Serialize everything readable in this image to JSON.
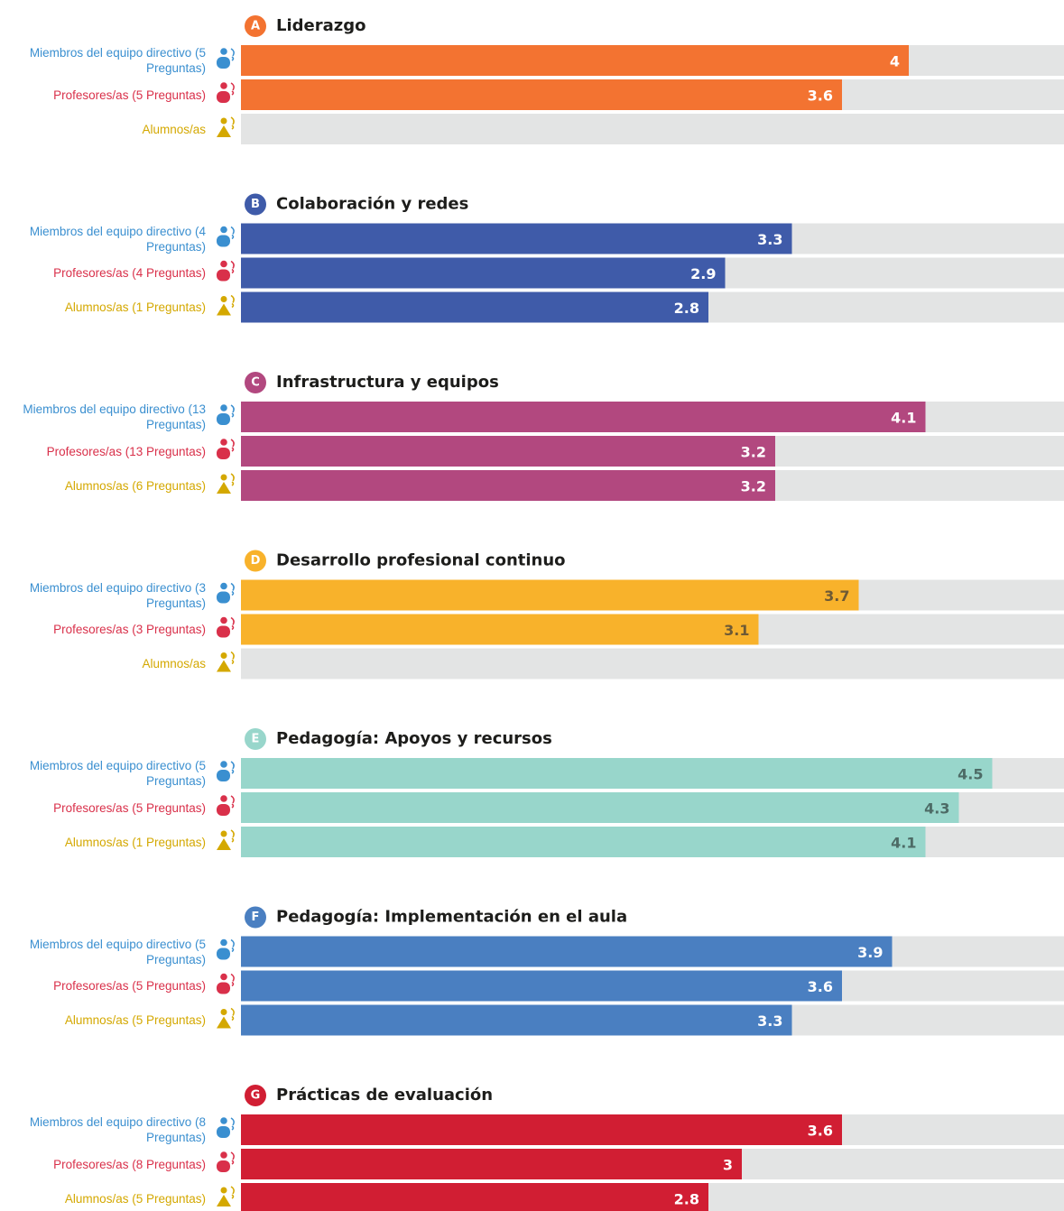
{
  "chart_data": [
    {
      "type": "bar",
      "badge": "A",
      "title": "Liderazgo",
      "categories": [
        "Miembros del equipo directivo (5 Preguntas)",
        "Profesores/as (5 Preguntas)",
        "Alumnos/as"
      ],
      "values": [
        4,
        3.6,
        null
      ],
      "color": "#f37331",
      "label_color": "#ffffff",
      "category_colors": [
        "#3a8fd0",
        "#d9304a",
        "#d4a800"
      ],
      "xlim": [
        0,
        5
      ]
    },
    {
      "type": "bar",
      "badge": "B",
      "title": "Colaboración y redes",
      "categories": [
        "Miembros del equipo directivo (4 Preguntas)",
        "Profesores/as (4 Preguntas)",
        "Alumnos/as (1 Preguntas)"
      ],
      "values": [
        3.3,
        2.9,
        2.8
      ],
      "color": "#3f5ba9",
      "label_color": "#ffffff",
      "category_colors": [
        "#3a8fd0",
        "#d9304a",
        "#d4a800"
      ],
      "xlim": [
        0,
        5
      ]
    },
    {
      "type": "bar",
      "badge": "C",
      "title": "Infrastructura y equipos",
      "categories": [
        "Miembros del equipo directivo (13 Preguntas)",
        "Profesores/as (13 Preguntas)",
        "Alumnos/as (6 Preguntas)"
      ],
      "values": [
        4.1,
        3.2,
        3.2
      ],
      "color": "#b2487f",
      "label_color": "#ffffff",
      "category_colors": [
        "#3a8fd0",
        "#d9304a",
        "#d4a800"
      ],
      "xlim": [
        0,
        5
      ]
    },
    {
      "type": "bar",
      "badge": "D",
      "title": "Desarrollo profesional continuo",
      "categories": [
        "Miembros del equipo directivo (3 Preguntas)",
        "Profesores/as (3 Preguntas)",
        "Alumnos/as"
      ],
      "values": [
        3.7,
        3.1,
        null
      ],
      "color": "#f8b22b",
      "label_color": "#6e5a35",
      "category_colors": [
        "#3a8fd0",
        "#d9304a",
        "#d4a800"
      ],
      "xlim": [
        0,
        5
      ]
    },
    {
      "type": "bar",
      "badge": "E",
      "title": "Pedagogía: Apoyos y recursos",
      "categories": [
        "Miembros del equipo directivo (5 Preguntas)",
        "Profesores/as (5 Preguntas)",
        "Alumnos/as (1 Preguntas)"
      ],
      "values": [
        4.5,
        4.3,
        4.1
      ],
      "color": "#98d6cb",
      "label_color": "#4d6b66",
      "category_colors": [
        "#3a8fd0",
        "#d9304a",
        "#d4a800"
      ],
      "xlim": [
        0,
        5
      ]
    },
    {
      "type": "bar",
      "badge": "F",
      "title": "Pedagogía: Implementación en el aula",
      "categories": [
        "Miembros del equipo directivo (5 Preguntas)",
        "Profesores/as (5 Preguntas)",
        "Alumnos/as (5 Preguntas)"
      ],
      "values": [
        3.9,
        3.6,
        3.3
      ],
      "color": "#4a7fc1",
      "label_color": "#ffffff",
      "category_colors": [
        "#3a8fd0",
        "#d9304a",
        "#d4a800"
      ],
      "xlim": [
        0,
        5
      ]
    },
    {
      "type": "bar",
      "badge": "G",
      "title": "Prácticas de evaluación",
      "categories": [
        "Miembros del equipo directivo (8 Preguntas)",
        "Profesores/as (8 Preguntas)",
        "Alumnos/as (5 Preguntas)"
      ],
      "values": [
        3.6,
        3,
        2.8
      ],
      "color": "#d11e33",
      "label_color": "#ffffff",
      "category_colors": [
        "#3a8fd0",
        "#d9304a",
        "#d4a800"
      ],
      "xlim": [
        0,
        5
      ]
    }
  ]
}
